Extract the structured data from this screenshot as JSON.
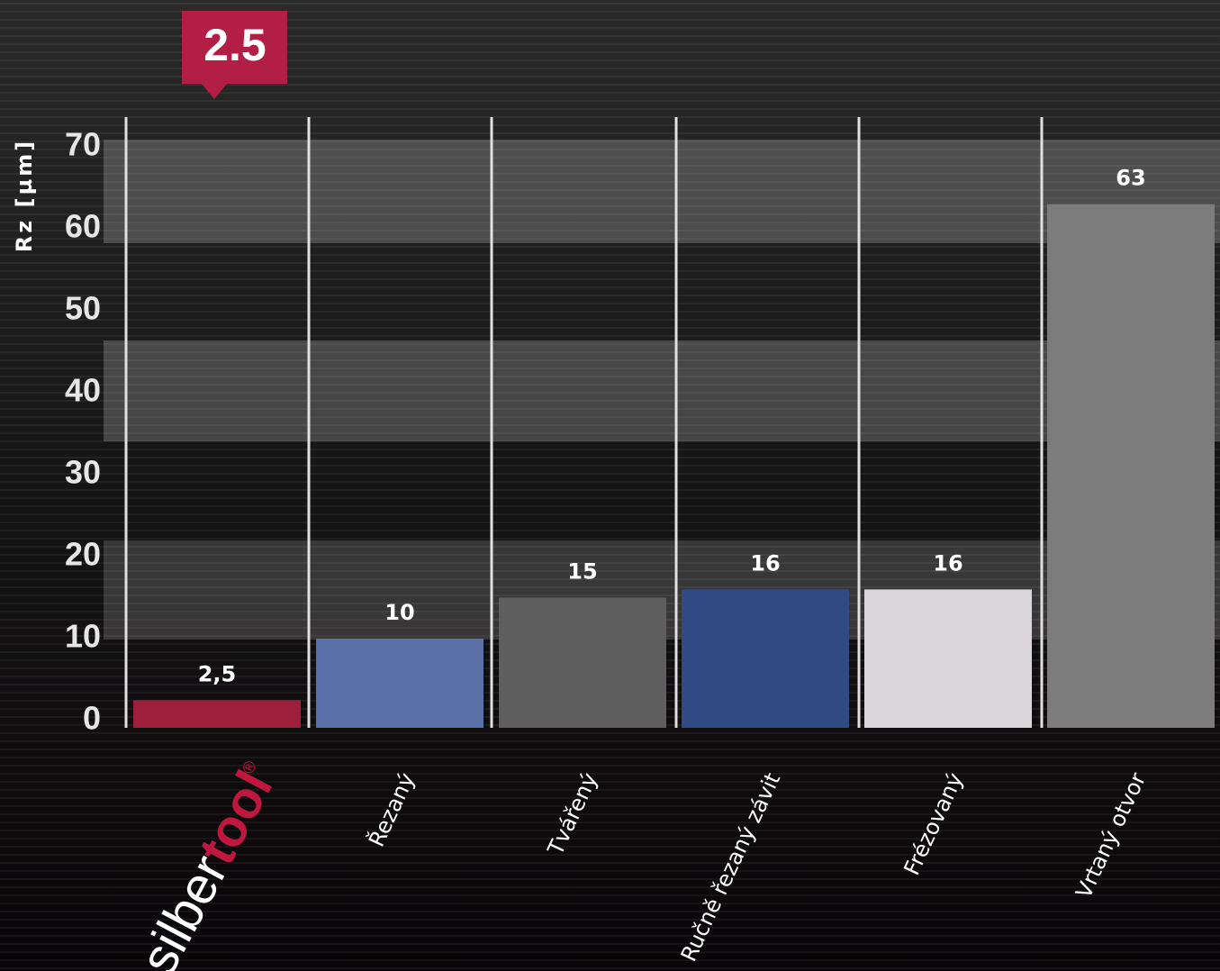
{
  "chart_data": {
    "type": "bar",
    "y_label": "Rz [µm]",
    "callout": "2.5",
    "brand_logo": {
      "parts": [
        "silber",
        "tool"
      ],
      "mark": "®"
    },
    "categories": [
      null,
      "Řezaný",
      "Tvářený",
      "Ručně řezaný závit",
      "Frézovaný",
      "Vrtaný otvor"
    ],
    "values": [
      2.5,
      10,
      15,
      16,
      16,
      63
    ],
    "value_labels": [
      "2,5",
      "10",
      "15",
      "16",
      "16",
      "63"
    ],
    "colors": [
      "#9e1f3c",
      "#5b70a8",
      "#5e5e5e",
      "#2f4a85",
      "#d9d5d9",
      "#7c7c7c"
    ],
    "ylim": [
      0,
      70
    ],
    "yticks": [
      0,
      10,
      20,
      30,
      40,
      50,
      60,
      70
    ]
  }
}
